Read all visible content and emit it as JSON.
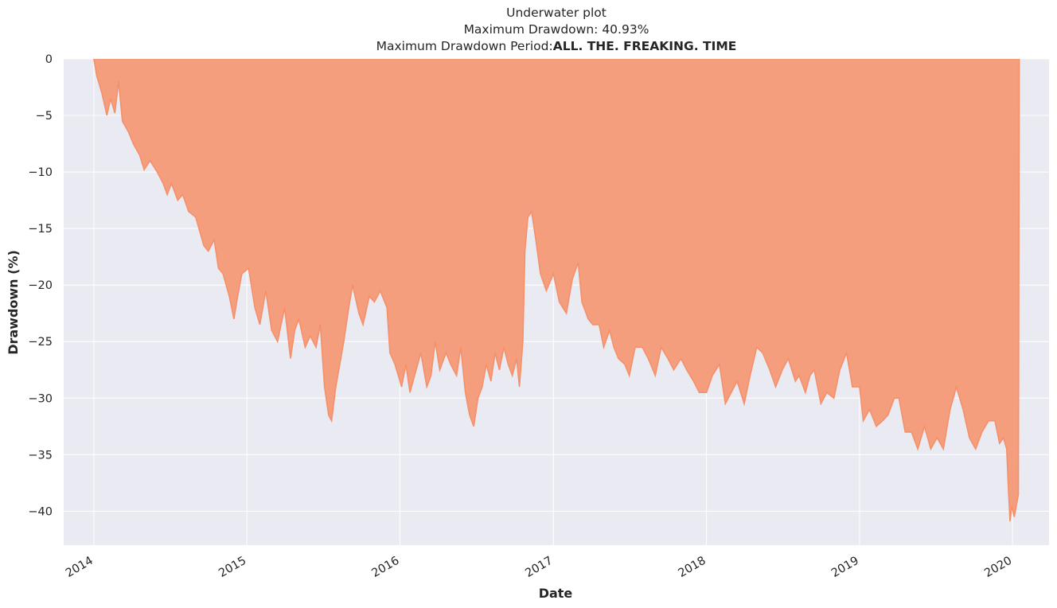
{
  "chart_data": {
    "type": "area",
    "title_lines": {
      "line1": "Underwater plot",
      "line2": "Maximum Drawdown: 40.93%",
      "line3_prefix": "Maximum Drawdown Period:",
      "line3_bold": "ALL. THE. FREAKING. TIME"
    },
    "xlabel": "Date",
    "ylabel": "Drawdown (%)",
    "ylim": [
      -43,
      0
    ],
    "xlim": [
      "2013-10-21",
      "2020-03-28"
    ],
    "y_ticks": [
      0,
      -5,
      -10,
      -15,
      -20,
      -25,
      -30,
      -35,
      -40
    ],
    "y_tick_labels": [
      "0",
      "−5",
      "−10",
      "−15",
      "−20",
      "−25",
      "−30",
      "−35",
      "−40"
    ],
    "x_ticks": [
      "2014-01-01",
      "2015-01-01",
      "2016-01-01",
      "2017-01-01",
      "2018-01-01",
      "2019-01-01",
      "2020-01-01"
    ],
    "x_tick_labels": [
      "2014",
      "2015",
      "2016",
      "2017",
      "2018",
      "2019",
      "2020"
    ],
    "grid": true,
    "fill_color": "#f59e7e",
    "line_color": "#f4906a",
    "background_color": "#eaeaf2",
    "series": [
      {
        "points": [
          [
            "2014-01-01",
            0
          ],
          [
            "2014-01-08",
            -1.5
          ],
          [
            "2014-01-20",
            -3
          ],
          [
            "2014-02-01",
            -5
          ],
          [
            "2014-02-10",
            -3.5
          ],
          [
            "2014-02-20",
            -4.8
          ],
          [
            "2014-03-01",
            -2
          ],
          [
            "2014-03-10",
            -5.5
          ],
          [
            "2014-03-25",
            -6.5
          ],
          [
            "2014-04-05",
            -7.5
          ],
          [
            "2014-04-20",
            -8.5
          ],
          [
            "2014-05-01",
            -9.8
          ],
          [
            "2014-05-15",
            -9
          ],
          [
            "2014-06-01",
            -10
          ],
          [
            "2014-06-15",
            -11
          ],
          [
            "2014-06-25",
            -12
          ],
          [
            "2014-07-05",
            -11
          ],
          [
            "2014-07-20",
            -12.5
          ],
          [
            "2014-08-01",
            -12
          ],
          [
            "2014-08-15",
            -13.5
          ],
          [
            "2014-09-01",
            -14
          ],
          [
            "2014-09-20",
            -16.5
          ],
          [
            "2014-10-01",
            -17
          ],
          [
            "2014-10-15",
            -16
          ],
          [
            "2014-10-25",
            -18.5
          ],
          [
            "2014-11-05",
            -19
          ],
          [
            "2014-11-20",
            -21
          ],
          [
            "2014-12-01",
            -23
          ],
          [
            "2014-12-10",
            -21
          ],
          [
            "2014-12-20",
            -19
          ],
          [
            "2015-01-05",
            -18.5
          ],
          [
            "2015-01-20",
            -22
          ],
          [
            "2015-02-01",
            -23.5
          ],
          [
            "2015-02-15",
            -20.5
          ],
          [
            "2015-03-01",
            -24
          ],
          [
            "2015-03-15",
            -25
          ],
          [
            "2015-04-01",
            -22
          ],
          [
            "2015-04-15",
            -26.5
          ],
          [
            "2015-04-25",
            -24
          ],
          [
            "2015-05-05",
            -23
          ],
          [
            "2015-05-20",
            -25.5
          ],
          [
            "2015-06-01",
            -24.5
          ],
          [
            "2015-06-15",
            -25.5
          ],
          [
            "2015-06-25",
            -23.5
          ],
          [
            "2015-07-05",
            -29
          ],
          [
            "2015-07-15",
            -31.5
          ],
          [
            "2015-07-22",
            -32
          ],
          [
            "2015-08-01",
            -29
          ],
          [
            "2015-08-20",
            -25
          ],
          [
            "2015-09-01",
            -22
          ],
          [
            "2015-09-10",
            -20
          ],
          [
            "2015-09-25",
            -22.5
          ],
          [
            "2015-10-05",
            -23.5
          ],
          [
            "2015-10-20",
            -21
          ],
          [
            "2015-11-01",
            -21.5
          ],
          [
            "2015-11-15",
            -20.5
          ],
          [
            "2015-12-01",
            -22
          ],
          [
            "2015-12-08",
            -26
          ],
          [
            "2015-12-20",
            -27
          ],
          [
            "2016-01-05",
            -29
          ],
          [
            "2016-01-15",
            -27
          ],
          [
            "2016-01-25",
            -29.5
          ],
          [
            "2016-02-05",
            -28
          ],
          [
            "2016-02-20",
            -26
          ],
          [
            "2016-03-05",
            -29
          ],
          [
            "2016-03-15",
            -28
          ],
          [
            "2016-03-25",
            -25
          ],
          [
            "2016-04-05",
            -27.5
          ],
          [
            "2016-04-20",
            -26
          ],
          [
            "2016-05-01",
            -27
          ],
          [
            "2016-05-15",
            -28
          ],
          [
            "2016-05-25",
            -25.5
          ],
          [
            "2016-06-05",
            -29.5
          ],
          [
            "2016-06-15",
            -31.5
          ],
          [
            "2016-06-25",
            -32.5
          ],
          [
            "2016-07-05",
            -30
          ],
          [
            "2016-07-15",
            -29
          ],
          [
            "2016-07-25",
            -27
          ],
          [
            "2016-08-05",
            -28.5
          ],
          [
            "2016-08-15",
            -26
          ],
          [
            "2016-08-25",
            -27.5
          ],
          [
            "2016-09-05",
            -25.5
          ],
          [
            "2016-09-15",
            -27
          ],
          [
            "2016-09-25",
            -28
          ],
          [
            "2016-10-05",
            -26.5
          ],
          [
            "2016-10-12",
            -29
          ],
          [
            "2016-10-20",
            -25
          ],
          [
            "2016-10-25",
            -17
          ],
          [
            "2016-11-01",
            -14
          ],
          [
            "2016-11-10",
            -13.5
          ],
          [
            "2016-11-20",
            -16
          ],
          [
            "2016-12-01",
            -19
          ],
          [
            "2016-12-15",
            -20.5
          ],
          [
            "2017-01-01",
            -19
          ],
          [
            "2017-01-15",
            -21.5
          ],
          [
            "2017-02-01",
            -22.5
          ],
          [
            "2017-02-15",
            -19.5
          ],
          [
            "2017-03-01",
            -18
          ],
          [
            "2017-03-10",
            -21.5
          ],
          [
            "2017-03-25",
            -23
          ],
          [
            "2017-04-05",
            -23.5
          ],
          [
            "2017-04-20",
            -23.5
          ],
          [
            "2017-05-01",
            -25.5
          ],
          [
            "2017-05-15",
            -24
          ],
          [
            "2017-05-25",
            -25.5
          ],
          [
            "2017-06-05",
            -26.5
          ],
          [
            "2017-06-20",
            -27
          ],
          [
            "2017-07-01",
            -28
          ],
          [
            "2017-07-15",
            -25.5
          ],
          [
            "2017-08-01",
            -25.5
          ],
          [
            "2017-08-15",
            -26.5
          ],
          [
            "2017-09-01",
            -28
          ],
          [
            "2017-09-15",
            -25.5
          ],
          [
            "2017-10-01",
            -26.5
          ],
          [
            "2017-10-15",
            -27.5
          ],
          [
            "2017-11-01",
            -26.5
          ],
          [
            "2017-11-15",
            -27.5
          ],
          [
            "2017-12-01",
            -28.5
          ],
          [
            "2017-12-15",
            -29.5
          ],
          [
            "2018-01-01",
            -29.5
          ],
          [
            "2018-01-15",
            -28
          ],
          [
            "2018-02-01",
            -27
          ],
          [
            "2018-02-15",
            -30.5
          ],
          [
            "2018-03-01",
            -29.5
          ],
          [
            "2018-03-15",
            -28.5
          ],
          [
            "2018-04-01",
            -30.5
          ],
          [
            "2018-04-15",
            -28
          ],
          [
            "2018-05-01",
            -25.5
          ],
          [
            "2018-05-15",
            -26
          ],
          [
            "2018-06-01",
            -27.5
          ],
          [
            "2018-06-15",
            -29
          ],
          [
            "2018-07-01",
            -27.5
          ],
          [
            "2018-07-15",
            -26.5
          ],
          [
            "2018-08-01",
            -28.5
          ],
          [
            "2018-08-10",
            -28
          ],
          [
            "2018-08-25",
            -29.5
          ],
          [
            "2018-09-05",
            -28
          ],
          [
            "2018-09-15",
            -27.5
          ],
          [
            "2018-10-01",
            -30.5
          ],
          [
            "2018-10-15",
            -29.5
          ],
          [
            "2018-11-01",
            -30
          ],
          [
            "2018-11-15",
            -27.5
          ],
          [
            "2018-12-01",
            -26
          ],
          [
            "2018-12-15",
            -29
          ],
          [
            "2019-01-01",
            -29
          ],
          [
            "2019-01-10",
            -32
          ],
          [
            "2019-01-25",
            -31
          ],
          [
            "2019-02-10",
            -32.5
          ],
          [
            "2019-02-25",
            -32
          ],
          [
            "2019-03-10",
            -31.5
          ],
          [
            "2019-03-25",
            -30
          ],
          [
            "2019-04-05",
            -30
          ],
          [
            "2019-04-20",
            -33
          ],
          [
            "2019-05-05",
            -33
          ],
          [
            "2019-05-20",
            -34.5
          ],
          [
            "2019-06-05",
            -32.5
          ],
          [
            "2019-06-20",
            -34.5
          ],
          [
            "2019-07-05",
            -33.5
          ],
          [
            "2019-07-20",
            -34.5
          ],
          [
            "2019-08-05",
            -31
          ],
          [
            "2019-08-20",
            -29
          ],
          [
            "2019-09-05",
            -31
          ],
          [
            "2019-09-20",
            -33.5
          ],
          [
            "2019-10-05",
            -34.5
          ],
          [
            "2019-10-20",
            -33
          ],
          [
            "2019-11-05",
            -32
          ],
          [
            "2019-11-20",
            -32
          ],
          [
            "2019-12-01",
            -34
          ],
          [
            "2019-12-10",
            -33.5
          ],
          [
            "2019-12-18",
            -34.5
          ],
          [
            "2019-12-22",
            -38
          ],
          [
            "2019-12-26",
            -40.9
          ],
          [
            "2019-12-30",
            -39.5
          ],
          [
            "2020-01-05",
            -40.5
          ],
          [
            "2020-01-10",
            -39.5
          ],
          [
            "2020-01-15",
            -38.5
          ],
          [
            "2020-01-17",
            0
          ]
        ]
      }
    ]
  }
}
